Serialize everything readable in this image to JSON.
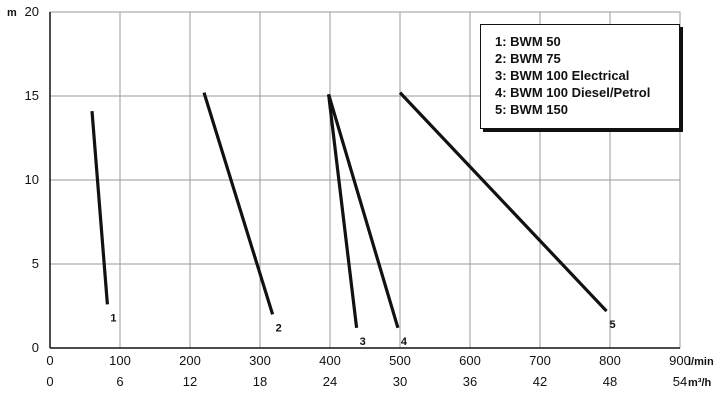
{
  "chart_data": {
    "type": "line",
    "y_unit": "m",
    "x_unit": "l/min",
    "x2_unit": "m³/h",
    "xlim": [
      0,
      900
    ],
    "ylim": [
      0,
      20
    ],
    "x_ticks": [
      "0",
      "100",
      "200",
      "300",
      "400",
      "500",
      "600",
      "700",
      "800",
      "900"
    ],
    "x2_ticks": [
      "0",
      "6",
      "12",
      "18",
      "24",
      "30",
      "36",
      "42",
      "48",
      "54"
    ],
    "y_ticks": [
      "0",
      "5",
      "10",
      "15",
      "20"
    ],
    "grid": true,
    "legend_position": "top-right",
    "legend": [
      "1: BWM 50",
      "2: BWM 75",
      "3: BWM 100 Electrical",
      "4: BWM 100 Diesel/Petrol",
      "5: BWM 150"
    ],
    "series": [
      {
        "label": "1",
        "points": [
          [
            60,
            14.1
          ],
          [
            82,
            2.6
          ]
        ]
      },
      {
        "label": "2",
        "points": [
          [
            220,
            15.2
          ],
          [
            318,
            2.0
          ]
        ]
      },
      {
        "label": "3",
        "points": [
          [
            398,
            15.1
          ],
          [
            438,
            1.2
          ]
        ]
      },
      {
        "label": "4",
        "points": [
          [
            398,
            15.1
          ],
          [
            497,
            1.2
          ]
        ]
      },
      {
        "label": "5",
        "points": [
          [
            500,
            15.2
          ],
          [
            795,
            2.2
          ]
        ]
      }
    ]
  }
}
